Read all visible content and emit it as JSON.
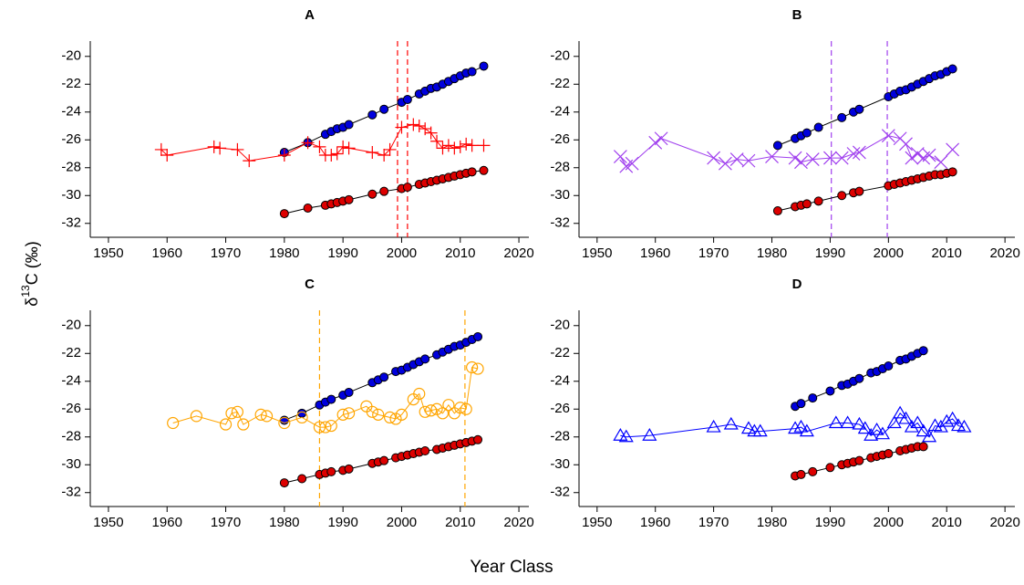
{
  "figure": {
    "xlabel": "Year Class",
    "ylabel": {
      "symbol": "δ",
      "superscript": "13",
      "text": "C (‰)"
    }
  },
  "chart_data": [
    {
      "type": "line",
      "title": "A",
      "xlim": [
        1946.9,
        2021.7
      ],
      "ylim": [
        -33,
        -18.9
      ],
      "xticks": [
        1950,
        1960,
        1970,
        1980,
        1990,
        2000,
        2010,
        2020
      ],
      "yticks": [
        -20,
        -22,
        -24,
        -26,
        -28,
        -30,
        -32
      ],
      "vlines": [
        1999.3,
        2001
      ],
      "vline_color": "#ff0000",
      "series": [
        {
          "color": "#0000dd",
          "line_color": "#000000",
          "marker": "circle",
          "x": [
            1980,
            1984,
            1987,
            1988,
            1989,
            1990,
            1991,
            1995,
            1997,
            2000,
            2001,
            2003,
            2004,
            2005,
            2006,
            2007,
            2008,
            2009,
            2010,
            2011,
            2012,
            2014
          ],
          "values": [
            -26.9,
            -26.2,
            -25.6,
            -25.4,
            -25.2,
            -25.1,
            -24.9,
            -24.2,
            -23.8,
            -23.3,
            -23.1,
            -22.7,
            -22.5,
            -22.3,
            -22.2,
            -22.0,
            -21.8,
            -21.6,
            -21.4,
            -21.2,
            -21.1,
            -20.7
          ]
        },
        {
          "color": "#dd0000",
          "line_color": "#000000",
          "marker": "circle",
          "x": [
            1980,
            1984,
            1987,
            1988,
            1989,
            1990,
            1991,
            1995,
            1997,
            2000,
            2001,
            2003,
            2004,
            2005,
            2006,
            2007,
            2008,
            2009,
            2010,
            2011,
            2012,
            2014
          ],
          "values": [
            -31.3,
            -30.9,
            -30.7,
            -30.6,
            -30.5,
            -30.4,
            -30.3,
            -29.9,
            -29.7,
            -29.5,
            -29.4,
            -29.2,
            -29.1,
            -29.0,
            -28.9,
            -28.8,
            -28.7,
            -28.6,
            -28.5,
            -28.4,
            -28.3,
            -28.2
          ]
        },
        {
          "color": "#ff0000",
          "line_color": "#ff0000",
          "marker": "plus",
          "x": [
            1959,
            1960,
            1968,
            1969,
            1972,
            1974,
            1980,
            1984,
            1986,
            1987,
            1988,
            1989,
            1990,
            1991,
            1995,
            1997,
            1998,
            2000,
            2002,
            2003,
            2004,
            2005,
            2006,
            2007,
            2008,
            2009,
            2010,
            2011,
            2012,
            2014
          ],
          "values": [
            -26.7,
            -27.1,
            -26.5,
            -26.6,
            -26.7,
            -27.5,
            -27.1,
            -26.2,
            -26.5,
            -27.1,
            -27.1,
            -27.0,
            -26.5,
            -26.6,
            -26.9,
            -27.1,
            -26.7,
            -25.1,
            -24.9,
            -25.0,
            -25.2,
            -25.5,
            -26.1,
            -26.6,
            -26.4,
            -26.6,
            -26.5,
            -26.3,
            -26.4,
            -26.4
          ]
        }
      ]
    },
    {
      "type": "line",
      "title": "B",
      "xlim": [
        1946.9,
        2021.7
      ],
      "ylim": [
        -33,
        -18.9
      ],
      "xticks": [
        1950,
        1960,
        1970,
        1980,
        1990,
        2000,
        2010,
        2020
      ],
      "yticks": [
        -20,
        -22,
        -24,
        -26,
        -28,
        -30,
        -32
      ],
      "vlines": [
        1990.2,
        1999.8
      ],
      "vline_color": "#a040ee",
      "series": [
        {
          "color": "#0000dd",
          "line_color": "#000000",
          "marker": "circle",
          "x": [
            1981,
            1984,
            1985,
            1986,
            1988,
            1992,
            1994,
            1995,
            2000,
            2001,
            2002,
            2003,
            2004,
            2005,
            2006,
            2007,
            2008,
            2009,
            2010,
            2011
          ],
          "values": [
            -26.4,
            -25.9,
            -25.7,
            -25.5,
            -25.1,
            -24.4,
            -24.0,
            -23.8,
            -22.9,
            -22.7,
            -22.5,
            -22.4,
            -22.2,
            -22.0,
            -21.8,
            -21.6,
            -21.4,
            -21.3,
            -21.1,
            -20.9
          ]
        },
        {
          "color": "#dd0000",
          "line_color": "#000000",
          "marker": "circle",
          "x": [
            1981,
            1984,
            1985,
            1986,
            1988,
            1992,
            1994,
            1995,
            2000,
            2001,
            2002,
            2003,
            2004,
            2005,
            2006,
            2007,
            2008,
            2009,
            2010,
            2011
          ],
          "values": [
            -31.1,
            -30.8,
            -30.7,
            -30.6,
            -30.4,
            -30.0,
            -29.8,
            -29.7,
            -29.3,
            -29.2,
            -29.1,
            -29.0,
            -28.9,
            -28.8,
            -28.7,
            -28.6,
            -28.5,
            -28.5,
            -28.4,
            -28.3
          ]
        },
        {
          "color": "#a040ee",
          "line_color": "#a040ee",
          "marker": "x",
          "x": [
            1954,
            1955,
            1956,
            1960,
            1961,
            1970,
            1972,
            1974,
            1976,
            1980,
            1984,
            1985,
            1987,
            1990,
            1992,
            1994,
            1995,
            2000,
            2002,
            2003,
            2004,
            2005,
            2006,
            2007,
            2009,
            2011
          ],
          "values": [
            -27.2,
            -27.9,
            -27.7,
            -26.2,
            -25.9,
            -27.3,
            -27.7,
            -27.4,
            -27.5,
            -27.2,
            -27.3,
            -27.6,
            -27.4,
            -27.3,
            -27.3,
            -27.0,
            -26.9,
            -25.7,
            -25.9,
            -26.3,
            -27.3,
            -27.0,
            -27.3,
            -27.1,
            -27.6,
            -26.7
          ]
        }
      ]
    },
    {
      "type": "line",
      "title": "C",
      "xlim": [
        1946.9,
        2021.7
      ],
      "ylim": [
        -33,
        -18.9
      ],
      "xticks": [
        1950,
        1960,
        1970,
        1980,
        1990,
        2000,
        2010,
        2020
      ],
      "yticks": [
        -20,
        -22,
        -24,
        -26,
        -28,
        -30,
        -32
      ],
      "vlines": [
        1986,
        2010.8
      ],
      "vline_color": "#ffa500",
      "series": [
        {
          "color": "#0000dd",
          "line_color": "#000000",
          "marker": "circle",
          "x": [
            1980,
            1983,
            1986,
            1987,
            1988,
            1990,
            1991,
            1995,
            1996,
            1997,
            1999,
            2000,
            2001,
            2002,
            2003,
            2004,
            2006,
            2007,
            2008,
            2009,
            2010,
            2011,
            2012,
            2013
          ],
          "values": [
            -26.8,
            -26.3,
            -25.7,
            -25.5,
            -25.3,
            -25.0,
            -24.8,
            -24.1,
            -23.9,
            -23.7,
            -23.3,
            -23.2,
            -23.0,
            -22.8,
            -22.6,
            -22.4,
            -22.1,
            -21.9,
            -21.7,
            -21.5,
            -21.4,
            -21.2,
            -21.0,
            -20.8
          ]
        },
        {
          "color": "#dd0000",
          "line_color": "#000000",
          "marker": "circle",
          "x": [
            1980,
            1983,
            1986,
            1987,
            1988,
            1990,
            1991,
            1995,
            1996,
            1997,
            1999,
            2000,
            2001,
            2002,
            2003,
            2004,
            2006,
            2007,
            2008,
            2009,
            2010,
            2011,
            2012,
            2013
          ],
          "values": [
            -31.3,
            -31.0,
            -30.7,
            -30.6,
            -30.5,
            -30.4,
            -30.3,
            -29.9,
            -29.8,
            -29.7,
            -29.5,
            -29.4,
            -29.3,
            -29.2,
            -29.1,
            -29.0,
            -28.9,
            -28.8,
            -28.7,
            -28.6,
            -28.5,
            -28.4,
            -28.3,
            -28.2
          ]
        },
        {
          "color": "#ffa500",
          "line_color": "#ffa500",
          "marker": "open-circle",
          "x": [
            1961,
            1965,
            1970,
            1971,
            1972,
            1973,
            1976,
            1977,
            1980,
            1983,
            1986,
            1987,
            1988,
            1990,
            1991,
            1994,
            1995,
            1996,
            1998,
            1999,
            2000,
            2002,
            2003,
            2004,
            2005,
            2006,
            2007,
            2008,
            2009,
            2010,
            2011,
            2012,
            2013
          ],
          "values": [
            -27.0,
            -26.5,
            -27.1,
            -26.3,
            -26.2,
            -27.1,
            -26.4,
            -26.5,
            -27.0,
            -26.6,
            -27.3,
            -27.3,
            -27.2,
            -26.4,
            -26.3,
            -25.8,
            -26.2,
            -26.4,
            -26.6,
            -26.7,
            -26.4,
            -25.3,
            -24.9,
            -26.2,
            -26.1,
            -26.0,
            -26.3,
            -25.7,
            -26.3,
            -25.9,
            -26.0,
            -23.0,
            -23.1
          ]
        }
      ]
    },
    {
      "type": "line",
      "title": "D",
      "xlim": [
        1946.9,
        2021.7
      ],
      "ylim": [
        -33,
        -18.9
      ],
      "xticks": [
        1950,
        1960,
        1970,
        1980,
        1990,
        2000,
        2010,
        2020
      ],
      "yticks": [
        -20,
        -22,
        -24,
        -26,
        -28,
        -30,
        -32
      ],
      "series": [
        {
          "color": "#0000dd",
          "line_color": "#000000",
          "marker": "circle",
          "x": [
            1984,
            1985,
            1987,
            1990,
            1992,
            1993,
            1994,
            1995,
            1997,
            1998,
            1999,
            2000,
            2002,
            2003,
            2004,
            2005,
            2006
          ],
          "values": [
            -25.8,
            -25.6,
            -25.2,
            -24.7,
            -24.3,
            -24.2,
            -24.0,
            -23.8,
            -23.4,
            -23.3,
            -23.1,
            -22.9,
            -22.5,
            -22.4,
            -22.2,
            -22.0,
            -21.8
          ]
        },
        {
          "color": "#dd0000",
          "line_color": "#000000",
          "marker": "circle",
          "x": [
            1984,
            1985,
            1987,
            1990,
            1992,
            1993,
            1994,
            1995,
            1997,
            1998,
            1999,
            2000,
            2002,
            2003,
            2004,
            2005,
            2006
          ],
          "values": [
            -30.8,
            -30.7,
            -30.5,
            -30.2,
            -30.0,
            -29.9,
            -29.8,
            -29.7,
            -29.5,
            -29.4,
            -29.3,
            -29.2,
            -29.0,
            -28.9,
            -28.8,
            -28.7,
            -28.7
          ]
        },
        {
          "color": "#0000ff",
          "line_color": "#0000ff",
          "marker": "triangle",
          "x": [
            1954,
            1955,
            1959,
            1970,
            1973,
            1976,
            1977,
            1978,
            1984,
            1985,
            1986,
            1991,
            1993,
            1995,
            1996,
            1997,
            1998,
            1999,
            2001,
            2002,
            2003,
            2004,
            2005,
            2006,
            2007,
            2008,
            2009,
            2010,
            2011,
            2012,
            2013
          ],
          "values": [
            -27.9,
            -28.0,
            -27.9,
            -27.3,
            -27.1,
            -27.4,
            -27.6,
            -27.6,
            -27.4,
            -27.3,
            -27.6,
            -27.0,
            -27.0,
            -27.1,
            -27.4,
            -27.9,
            -27.5,
            -27.8,
            -27.0,
            -26.3,
            -26.7,
            -27.3,
            -27.0,
            -27.6,
            -28.0,
            -27.2,
            -27.3,
            -26.9,
            -26.7,
            -27.2,
            -27.3
          ]
        }
      ]
    }
  ]
}
